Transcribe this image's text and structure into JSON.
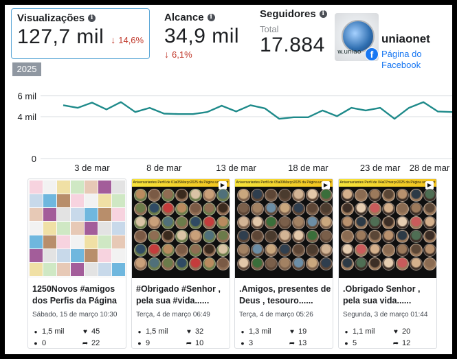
{
  "metrics": {
    "views": {
      "label": "Visualizações",
      "value": "127,7 mil",
      "change": "14,6%"
    },
    "reach": {
      "label": "Alcance",
      "value": "34,9 mil",
      "change": "6,1%"
    },
    "followers": {
      "label": "Seguidores",
      "sublabel": "Total",
      "value": "17.884"
    }
  },
  "year_badge": "2025",
  "page": {
    "name": "uniaonet",
    "type": "Página do Facebook",
    "avatar_caption": "w.uniao"
  },
  "chart_data": {
    "type": "line",
    "title": "",
    "xlabel": "",
    "ylabel": "",
    "x_tick_labels": [
      "3 de mar",
      "8 de mar",
      "13 de mar",
      "18 de mar",
      "23 de mar",
      "28 de mar"
    ],
    "y_tick_labels": [
      "6 mil",
      "4 mil",
      "0"
    ],
    "ylim": [
      0,
      6300
    ],
    "grid": true,
    "color": "#1e8a8a",
    "series": [
      {
        "name": "",
        "values": [
          5100,
          4850,
          5350,
          4700,
          5400,
          4450,
          4850,
          4300,
          4250,
          4250,
          4450,
          5050,
          4500,
          5100,
          4800,
          3800,
          3950,
          3950,
          4600,
          4050,
          4850,
          4600,
          4850,
          3800,
          4850,
          5400,
          4500,
          4450
        ]
      }
    ]
  },
  "posts": [
    {
      "title": "1250Novos #amigos dos Perfis da Página ...",
      "date": "Sábado, 15 de março 10:30",
      "views": "1,5 mil",
      "likes": "45",
      "comments": "0",
      "shares": "22",
      "thumb_header": ""
    },
    {
      "title": "#Obrigado #Senhor , pela sua #vida......",
      "date": "Terça, 4 de março 06:49",
      "views": "1,5 mil",
      "likes": "32",
      "comments": "9",
      "shares": "10",
      "thumb_header": "Aniversariantes Perfil de 01a05Março2025 da Página uniaonet"
    },
    {
      "title": ".Amigos, presentes de Deus , tesouro......",
      "date": "Terça, 4 de março 05:26",
      "views": "1,3 mil",
      "likes": "19",
      "comments": "3",
      "shares": "13",
      "thumb_header": "Aniversariantes Perfil de 05a09Março2025 da Página uniaonet"
    },
    {
      "title": ".Obrigado Senhor , pela sua vida......",
      "date": "Segunda, 3 de março 01:44",
      "views": "1,1 mil",
      "likes": "20",
      "comments": "5",
      "shares": "12",
      "thumb_header": "Aniversariantes Perfil de 04a07março2025 da Página uniaonet"
    }
  ]
}
